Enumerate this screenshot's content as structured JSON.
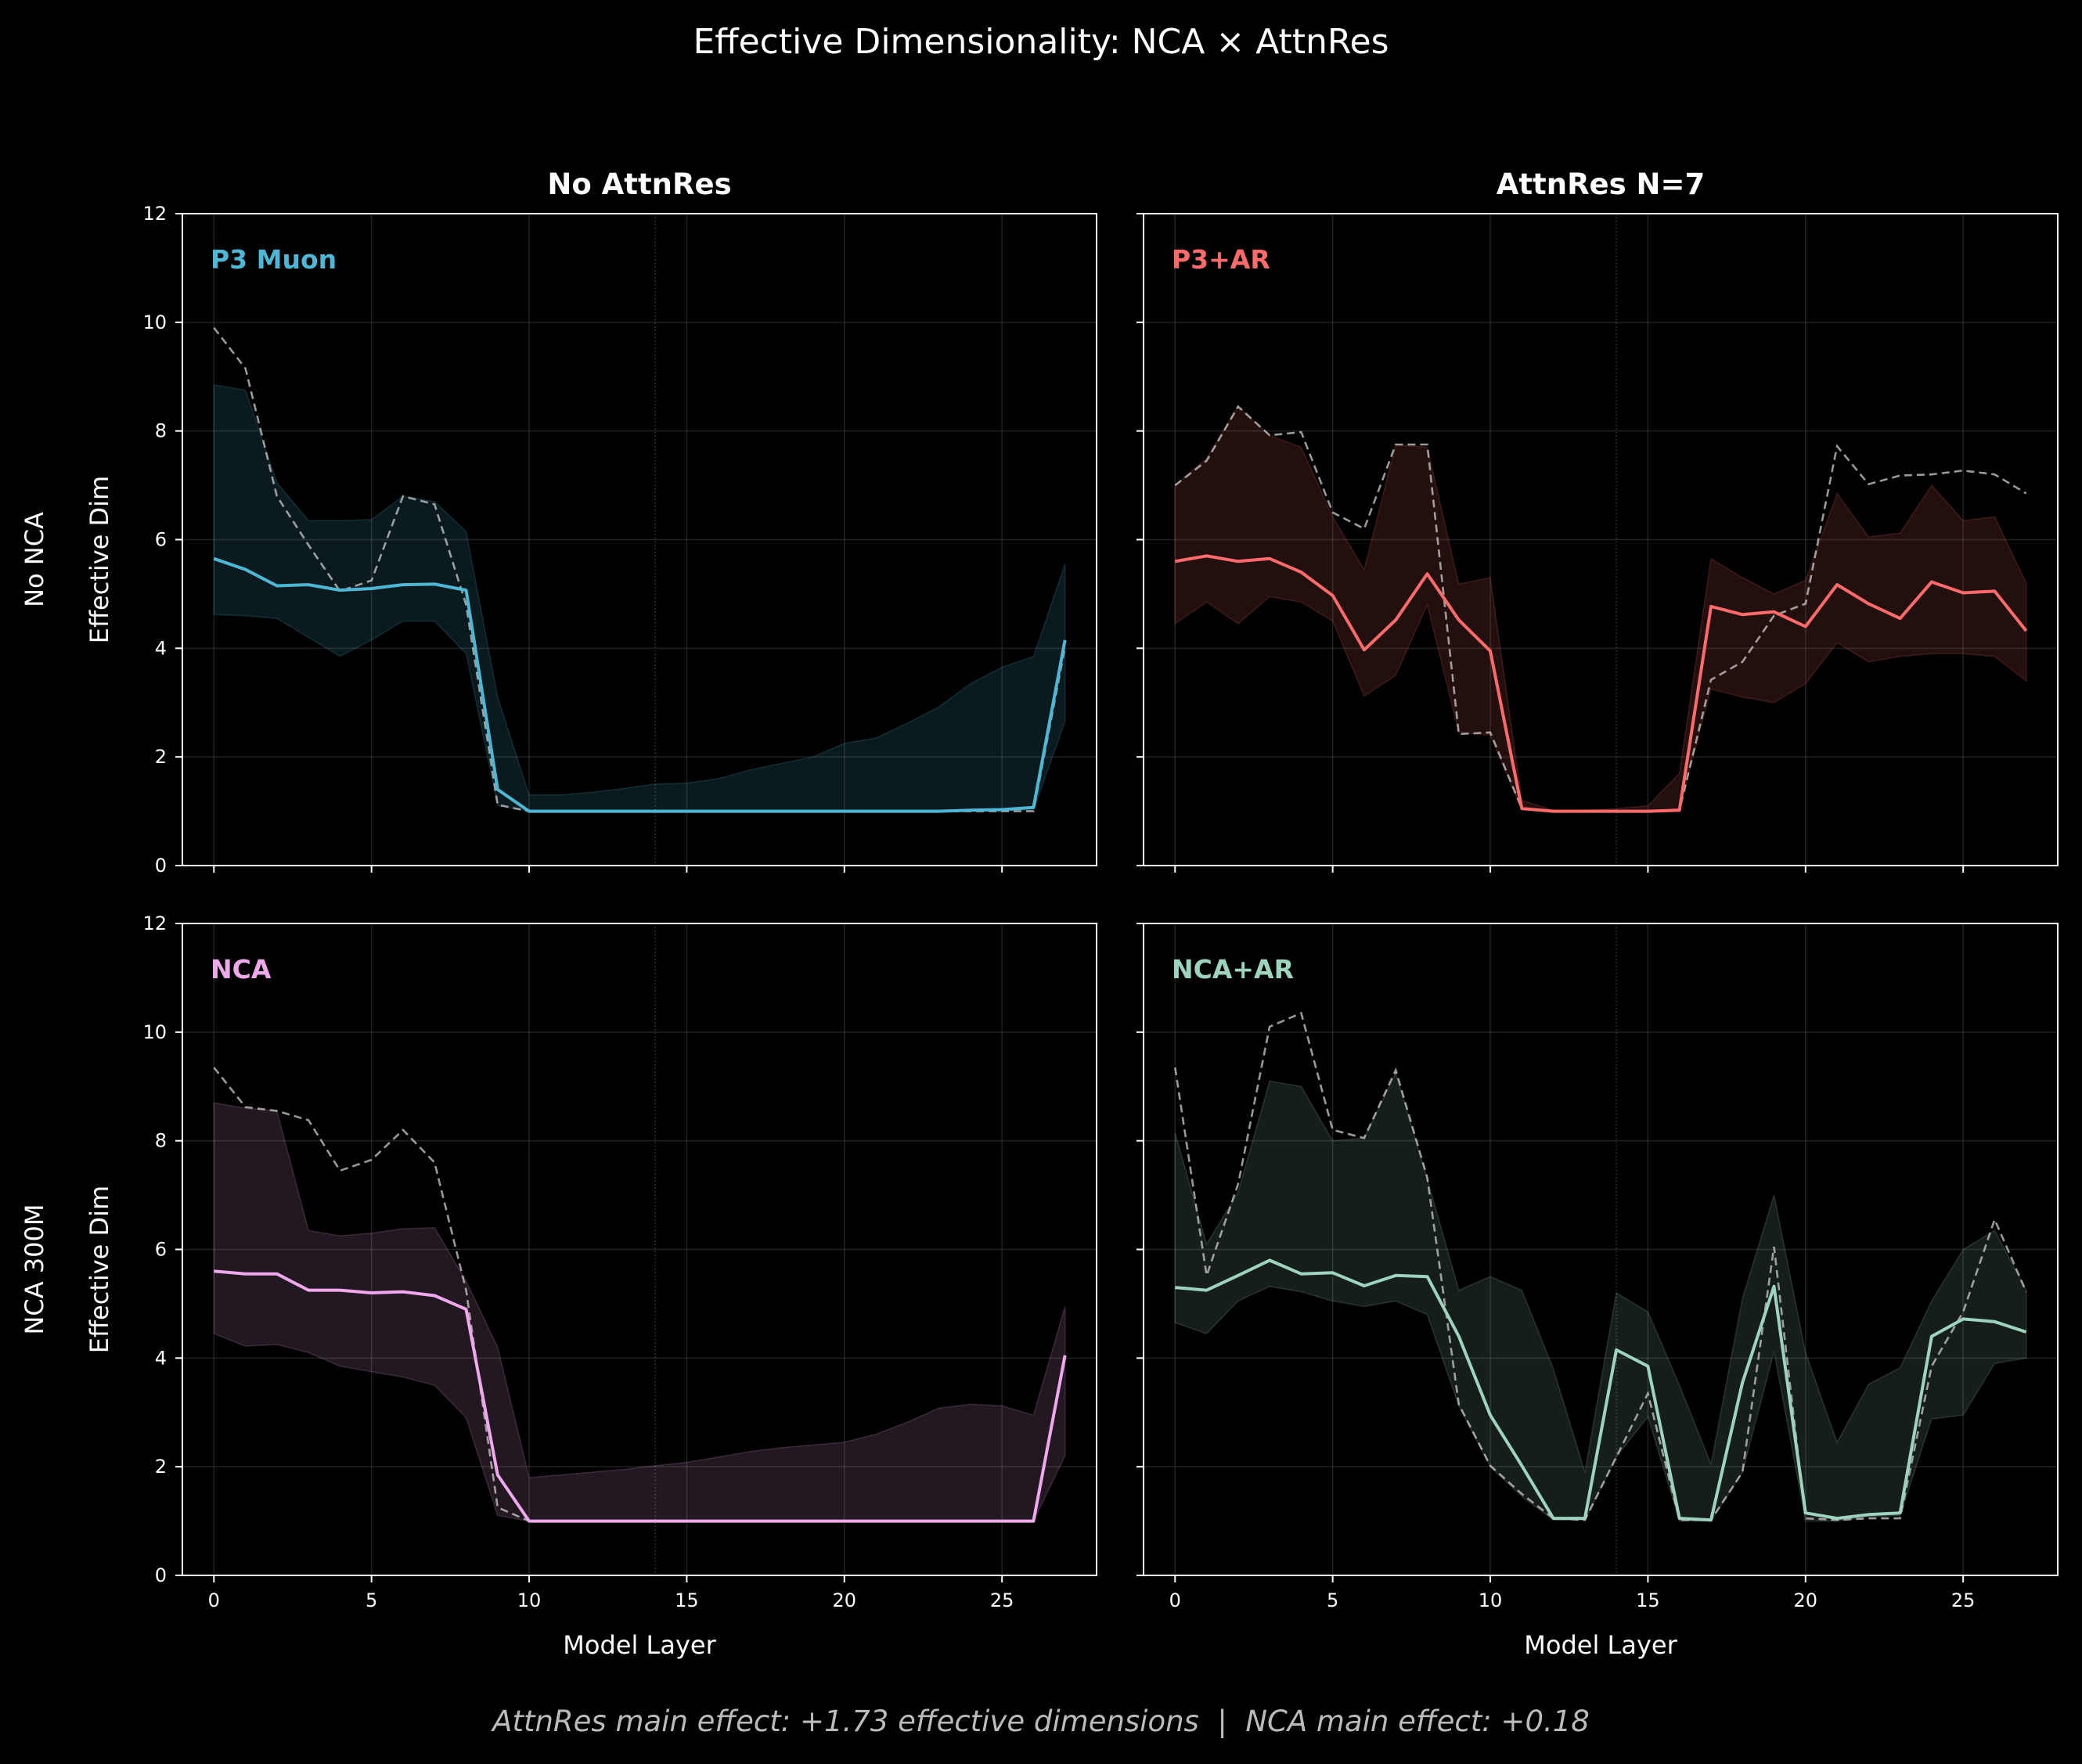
{
  "figure": {
    "title": "Effective Dimensionality: NCA × AttnRes",
    "column_titles": [
      "No AttnRes",
      "AttnRes N=7"
    ],
    "row_titles": [
      "No NCA",
      "NCA 300M"
    ],
    "xlabel": "Model Layer",
    "ylabel": "Effective Dim",
    "footer": "AttnRes main effect: +1.73 effective dimensions  |  NCA main effect: +0.18",
    "background": "#000000",
    "x_ticks": [
      "0",
      "5",
      "10",
      "15",
      "20",
      "25"
    ],
    "y_ticks": [
      "0",
      "2",
      "4",
      "6",
      "8",
      "10",
      "12"
    ]
  },
  "chart_data": [
    {
      "type": "line",
      "panel": "P3 Muon",
      "color": "#4cb8d6",
      "xlim": [
        -1,
        28
      ],
      "ylim": [
        0,
        12
      ],
      "grid": true,
      "x": [
        0,
        1,
        2,
        3,
        4,
        5,
        6,
        7,
        8,
        9,
        10,
        11,
        12,
        13,
        14,
        15,
        16,
        17,
        18,
        19,
        20,
        21,
        22,
        23,
        24,
        25,
        26,
        27
      ],
      "mean": [
        5.65,
        5.45,
        5.15,
        5.17,
        5.07,
        5.1,
        5.17,
        5.18,
        5.07,
        1.4,
        1.0,
        1.0,
        1.0,
        1.0,
        1.0,
        1.0,
        1.0,
        1.0,
        1.0,
        1.0,
        1.0,
        1.0,
        1.0,
        1.0,
        1.02,
        1.03,
        1.07,
        4.15
      ],
      "band_low": [
        4.62,
        4.6,
        4.55,
        4.2,
        3.85,
        4.15,
        4.5,
        4.5,
        3.9,
        1.1,
        1.0,
        1.0,
        1.0,
        1.0,
        1.0,
        1.0,
        1.0,
        1.0,
        1.0,
        1.0,
        1.0,
        1.0,
        1.0,
        1.0,
        1.0,
        1.0,
        1.02,
        2.65
      ],
      "band_high": [
        8.85,
        8.75,
        7.05,
        6.35,
        6.35,
        6.37,
        6.8,
        6.7,
        6.15,
        3.1,
        1.3,
        1.3,
        1.35,
        1.42,
        1.5,
        1.52,
        1.6,
        1.76,
        1.88,
        2.0,
        2.25,
        2.35,
        2.62,
        2.92,
        3.35,
        3.65,
        3.85,
        5.55
      ],
      "dashed": [
        9.9,
        9.15,
        6.8,
        5.9,
        5.05,
        5.25,
        6.8,
        6.65,
        4.8,
        1.12,
        1.0,
        1.0,
        1.0,
        1.0,
        1.0,
        1.0,
        1.0,
        1.0,
        1.0,
        1.0,
        1.0,
        1.0,
        1.0,
        1.0,
        1.0,
        1.0,
        1.0,
        4.02
      ]
    },
    {
      "type": "line",
      "panel": "P3+AR",
      "color": "#ff6b6b",
      "xlim": [
        -1,
        28
      ],
      "ylim": [
        0,
        12
      ],
      "grid": true,
      "x": [
        0,
        1,
        2,
        3,
        4,
        5,
        6,
        7,
        8,
        9,
        10,
        11,
        12,
        13,
        14,
        15,
        16,
        17,
        18,
        19,
        20,
        21,
        22,
        23,
        24,
        25,
        26,
        27
      ],
      "mean": [
        5.6,
        5.7,
        5.6,
        5.65,
        5.4,
        4.97,
        3.97,
        4.52,
        5.37,
        4.52,
        3.95,
        1.05,
        1.0,
        1.0,
        1.0,
        1.0,
        1.02,
        4.77,
        4.62,
        4.67,
        4.4,
        5.17,
        4.82,
        4.55,
        5.22,
        5.02,
        5.05,
        4.32
      ],
      "band_low": [
        4.45,
        4.85,
        4.45,
        4.95,
        4.85,
        4.5,
        3.12,
        3.5,
        4.8,
        2.45,
        2.4,
        1.03,
        1.0,
        1.0,
        1.0,
        1.0,
        1.05,
        3.25,
        3.1,
        3.0,
        3.35,
        4.1,
        3.75,
        3.85,
        3.9,
        3.9,
        3.85,
        3.4
      ],
      "band_high": [
        7.0,
        7.5,
        8.45,
        7.92,
        7.7,
        6.42,
        5.45,
        7.75,
        7.7,
        5.18,
        5.3,
        1.2,
        1.02,
        1.02,
        1.05,
        1.1,
        1.7,
        5.65,
        5.3,
        5.0,
        5.25,
        6.85,
        6.05,
        6.12,
        7.0,
        6.35,
        6.42,
        5.2
      ],
      "dashed": [
        7.0,
        7.45,
        8.45,
        7.92,
        7.98,
        6.5,
        6.2,
        7.75,
        7.75,
        2.42,
        2.45,
        1.05,
        1.0,
        1.0,
        1.0,
        1.0,
        1.02,
        3.42,
        3.75,
        4.6,
        4.82,
        7.72,
        7.02,
        7.18,
        7.2,
        7.27,
        7.2,
        6.85
      ]
    },
    {
      "type": "line",
      "panel": "NCA",
      "color": "#f0a8ec",
      "xlim": [
        -1,
        28
      ],
      "ylim": [
        0,
        12
      ],
      "grid": true,
      "x": [
        0,
        1,
        2,
        3,
        4,
        5,
        6,
        7,
        8,
        9,
        10,
        11,
        12,
        13,
        14,
        15,
        16,
        17,
        18,
        19,
        20,
        21,
        22,
        23,
        24,
        25,
        26,
        27
      ],
      "mean": [
        5.6,
        5.55,
        5.55,
        5.25,
        5.25,
        5.2,
        5.22,
        5.15,
        4.9,
        1.85,
        1.0,
        1.0,
        1.0,
        1.0,
        1.0,
        1.0,
        1.0,
        1.0,
        1.0,
        1.0,
        1.0,
        1.0,
        1.0,
        1.0,
        1.0,
        1.0,
        1.0,
        4.05
      ],
      "band_low": [
        4.45,
        4.22,
        4.25,
        4.1,
        3.85,
        3.75,
        3.65,
        3.5,
        2.9,
        1.1,
        1.0,
        1.0,
        1.0,
        1.0,
        1.0,
        1.0,
        1.0,
        1.0,
        1.0,
        1.0,
        1.0,
        1.0,
        1.0,
        1.0,
        1.0,
        1.0,
        1.0,
        2.2
      ],
      "band_high": [
        8.7,
        8.6,
        8.55,
        6.35,
        6.25,
        6.3,
        6.38,
        6.4,
        5.42,
        4.2,
        1.8,
        1.85,
        1.9,
        1.95,
        2.02,
        2.08,
        2.18,
        2.28,
        2.35,
        2.4,
        2.45,
        2.6,
        2.82,
        3.08,
        3.15,
        3.12,
        2.95,
        4.95
      ],
      "dashed": [
        9.35,
        8.62,
        8.55,
        8.38,
        7.45,
        7.65,
        8.2,
        7.6,
        5.25,
        1.25,
        1.0,
        1.0,
        1.0,
        1.0,
        1.0,
        1.0,
        1.0,
        1.0,
        1.0,
        1.0,
        1.0,
        1.0,
        1.0,
        1.0,
        1.0,
        1.0,
        1.0,
        4.05
      ]
    },
    {
      "type": "line",
      "panel": "NCA+AR",
      "color": "#9ed4bd",
      "xlim": [
        -1,
        28
      ],
      "ylim": [
        0,
        12
      ],
      "grid": true,
      "x": [
        0,
        1,
        2,
        3,
        4,
        5,
        6,
        7,
        8,
        9,
        10,
        11,
        12,
        13,
        14,
        15,
        16,
        17,
        18,
        19,
        20,
        21,
        22,
        23,
        24,
        25,
        26,
        27
      ],
      "mean": [
        5.3,
        5.25,
        5.52,
        5.8,
        5.55,
        5.57,
        5.33,
        5.52,
        5.5,
        4.4,
        2.95,
        2.02,
        1.05,
        1.05,
        4.15,
        3.85,
        1.05,
        1.02,
        3.55,
        5.32,
        1.15,
        1.05,
        1.12,
        1.15,
        4.4,
        4.72,
        4.67,
        4.48
      ],
      "band_low": [
        4.65,
        4.45,
        5.05,
        5.32,
        5.22,
        5.05,
        4.95,
        5.05,
        4.8,
        3.12,
        2.0,
        1.45,
        1.02,
        1.02,
        2.18,
        2.92,
        1.0,
        1.0,
        1.9,
        4.12,
        1.0,
        1.0,
        1.08,
        1.1,
        2.88,
        2.95,
        3.9,
        4.0
      ],
      "band_high": [
        8.15,
        6.1,
        7.05,
        9.1,
        9.0,
        8.0,
        8.05,
        9.25,
        7.3,
        5.25,
        5.5,
        5.25,
        3.8,
        1.9,
        5.2,
        4.85,
        3.5,
        2.05,
        5.1,
        7.0,
        4.1,
        2.45,
        3.52,
        3.82,
        5.05,
        6.0,
        6.35,
        5.25
      ],
      "dashed": [
        9.35,
        5.52,
        7.2,
        10.1,
        10.35,
        8.2,
        8.05,
        9.3,
        7.32,
        3.15,
        2.02,
        1.5,
        1.05,
        1.02,
        2.18,
        3.35,
        1.02,
        1.02,
        1.9,
        6.05,
        1.05,
        1.02,
        1.05,
        1.05,
        3.85,
        4.85,
        6.55,
        5.22
      ]
    }
  ]
}
